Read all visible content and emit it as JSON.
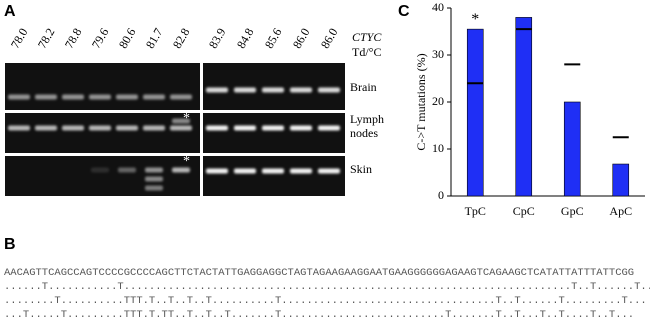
{
  "panel_a": {
    "label": "A",
    "header_gene": "CTYC",
    "header_unit": "Td/°C",
    "temperatures": [
      "78.0",
      "78.2",
      "78.8",
      "79.6",
      "80.6",
      "81.7",
      "82.8",
      "83.9",
      "84.8",
      "85.6",
      "86.0",
      "86.0"
    ],
    "rows": [
      "Brain",
      "Lymph\nnodes",
      "Skin"
    ],
    "asterisk": "*"
  },
  "panel_b": {
    "label": "B",
    "sequences": [
      "AACAGTTCAGCCAGTCCCCGCCCCAGCTTCTACTATTGAGGAGGCTAGTAGAAGAAGGAATGAAGGGGGGAGAAGTCAGAAGCTCATATTATTTATTCGG",
      "......T...........T.......................................................................T..T......T..",
      "........T..........TTT.T..T..T..T..........T..................................T..T......T.........T...",
      "...T.....T.........TTT.T.TT..T..T..T.......T..........................T.......T..T...T..T....T..T..."
    ]
  },
  "chart_data": {
    "type": "bar",
    "panel_label": "C",
    "ylabel": "C->T mutations (%)",
    "categories": [
      "TpC",
      "CpC",
      "GpC",
      "ApC"
    ],
    "values": [
      35.5,
      38,
      20,
      6.8
    ],
    "reference_values": [
      24,
      35.5,
      28,
      12.5
    ],
    "color": "#1f2ff5",
    "reference_color": "#000000",
    "ylim": [
      0,
      40
    ],
    "yticks": [
      0,
      10,
      20,
      30,
      40
    ],
    "grid": false,
    "annotations": [
      {
        "text": "*",
        "category": "TpC"
      }
    ]
  }
}
